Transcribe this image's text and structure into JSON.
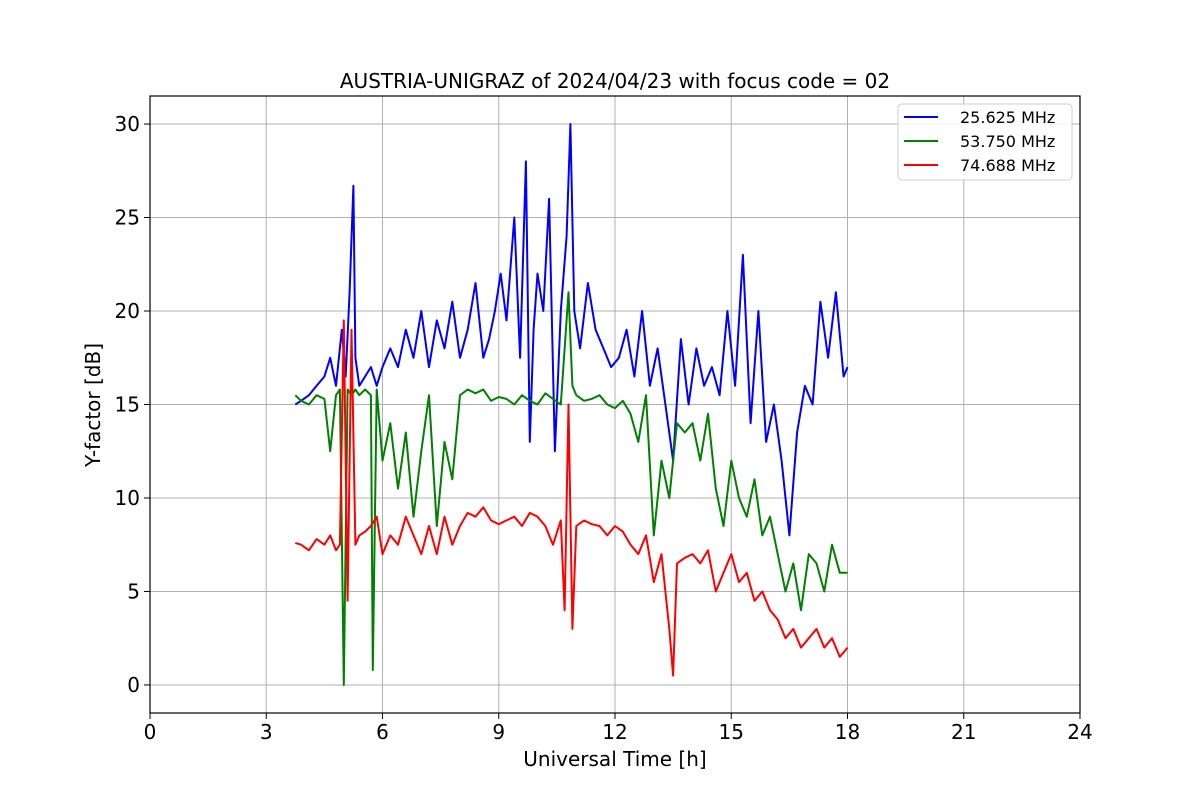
{
  "chart_data": {
    "type": "line",
    "title": "AUSTRIA-UNIGRAZ of 2024/04/23 with focus code = 02",
    "xlabel": "Universal Time [h]",
    "ylabel": "Y-factor [dB]",
    "xlim": [
      0,
      24
    ],
    "ylim": [
      -1.5,
      31.5
    ],
    "xticks": [
      0,
      3,
      6,
      9,
      12,
      15,
      18,
      21,
      24
    ],
    "yticks": [
      0,
      5,
      10,
      15,
      20,
      25,
      30
    ],
    "grid": true,
    "legend_position": "top-right",
    "series": [
      {
        "name": "25.625 MHz",
        "color": "#0000ff",
        "x": [
          3.75,
          3.9,
          4.1,
          4.3,
          4.5,
          4.65,
          4.8,
          4.95,
          5.05,
          5.15,
          5.25,
          5.3,
          5.4,
          5.55,
          5.7,
          5.85,
          6.0,
          6.2,
          6.4,
          6.6,
          6.8,
          7.0,
          7.2,
          7.4,
          7.6,
          7.8,
          8.0,
          8.2,
          8.4,
          8.6,
          8.75,
          8.9,
          9.05,
          9.2,
          9.4,
          9.55,
          9.7,
          9.8,
          9.9,
          10.0,
          10.15,
          10.3,
          10.45,
          10.6,
          10.75,
          10.85,
          10.95,
          11.1,
          11.3,
          11.5,
          11.7,
          11.9,
          12.1,
          12.3,
          12.5,
          12.7,
          12.9,
          13.1,
          13.3,
          13.5,
          13.7,
          13.9,
          14.1,
          14.3,
          14.5,
          14.7,
          14.9,
          15.1,
          15.3,
          15.5,
          15.7,
          15.9,
          16.1,
          16.3,
          16.5,
          16.7,
          16.9,
          17.1,
          17.3,
          17.5,
          17.7,
          17.9,
          18.0
        ],
        "y": [
          15.0,
          15.2,
          15.5,
          16.0,
          16.5,
          17.5,
          16.0,
          19.0,
          16.5,
          21.0,
          26.7,
          17.5,
          16.0,
          16.5,
          17.0,
          16.0,
          17.0,
          18.0,
          17.0,
          19.0,
          17.5,
          20.0,
          17.0,
          19.5,
          18.0,
          20.5,
          17.5,
          19.0,
          21.5,
          17.5,
          18.5,
          20.0,
          22.0,
          19.5,
          25.0,
          17.5,
          28.0,
          13.0,
          19.0,
          22.0,
          20.0,
          26.0,
          12.5,
          20.0,
          24.0,
          30.0,
          20.0,
          18.0,
          21.5,
          19.0,
          18.0,
          17.0,
          17.5,
          19.0,
          16.5,
          20.0,
          16.0,
          18.0,
          15.0,
          12.0,
          18.5,
          15.0,
          18.0,
          16.0,
          17.0,
          15.5,
          20.0,
          16.0,
          23.0,
          14.0,
          20.0,
          13.0,
          15.0,
          12.0,
          8.0,
          13.5,
          16.0,
          15.0,
          20.5,
          17.5,
          21.0,
          16.5,
          17.0
        ]
      },
      {
        "name": "53.750 MHz",
        "color": "#008000",
        "x": [
          3.75,
          3.9,
          4.1,
          4.3,
          4.5,
          4.65,
          4.8,
          4.9,
          5.0,
          5.1,
          5.2,
          5.3,
          5.4,
          5.55,
          5.7,
          5.75,
          5.85,
          6.0,
          6.2,
          6.4,
          6.6,
          6.8,
          7.0,
          7.2,
          7.4,
          7.6,
          7.8,
          8.0,
          8.2,
          8.4,
          8.6,
          8.8,
          9.0,
          9.2,
          9.4,
          9.6,
          9.8,
          10.0,
          10.2,
          10.4,
          10.6,
          10.8,
          10.9,
          11.0,
          11.2,
          11.4,
          11.6,
          11.8,
          12.0,
          12.2,
          12.4,
          12.6,
          12.8,
          13.0,
          13.2,
          13.4,
          13.6,
          13.8,
          14.0,
          14.2,
          14.4,
          14.6,
          14.8,
          15.0,
          15.2,
          15.4,
          15.6,
          15.8,
          16.0,
          16.2,
          16.4,
          16.6,
          16.8,
          17.0,
          17.2,
          17.4,
          17.6,
          17.8,
          18.0
        ],
        "y": [
          15.5,
          15.2,
          15.0,
          15.5,
          15.3,
          12.5,
          15.5,
          15.8,
          0.0,
          15.8,
          15.5,
          15.8,
          15.5,
          15.8,
          15.5,
          0.8,
          15.8,
          12.0,
          14.0,
          10.5,
          13.5,
          9.0,
          12.5,
          15.5,
          8.5,
          13.0,
          11.0,
          15.5,
          15.8,
          15.6,
          15.8,
          15.2,
          15.4,
          15.3,
          15.0,
          15.5,
          15.2,
          15.0,
          15.6,
          15.3,
          15.0,
          21.0,
          16.0,
          15.5,
          15.2,
          15.3,
          15.5,
          15.0,
          14.8,
          15.2,
          14.5,
          13.0,
          15.5,
          8.0,
          12.0,
          10.0,
          14.0,
          13.5,
          14.0,
          12.0,
          14.5,
          10.5,
          8.5,
          12.0,
          10.0,
          9.0,
          11.0,
          8.0,
          9.0,
          7.0,
          5.0,
          6.5,
          4.0,
          7.0,
          6.5,
          5.0,
          7.5,
          6.0,
          6.0
        ]
      },
      {
        "name": "74.688 MHz",
        "color": "#ff0000",
        "x": [
          3.75,
          3.9,
          4.1,
          4.3,
          4.5,
          4.65,
          4.8,
          4.9,
          5.0,
          5.1,
          5.2,
          5.3,
          5.4,
          5.55,
          5.7,
          5.85,
          6.0,
          6.2,
          6.4,
          6.6,
          6.8,
          7.0,
          7.2,
          7.4,
          7.6,
          7.8,
          8.0,
          8.2,
          8.4,
          8.6,
          8.8,
          9.0,
          9.2,
          9.4,
          9.6,
          9.8,
          10.0,
          10.2,
          10.4,
          10.6,
          10.7,
          10.8,
          10.9,
          11.0,
          11.2,
          11.4,
          11.6,
          11.8,
          12.0,
          12.2,
          12.4,
          12.6,
          12.8,
          13.0,
          13.2,
          13.4,
          13.5,
          13.6,
          13.8,
          14.0,
          14.2,
          14.4,
          14.6,
          14.8,
          15.0,
          15.2,
          15.4,
          15.6,
          15.8,
          16.0,
          16.2,
          16.4,
          16.6,
          16.8,
          17.0,
          17.2,
          17.4,
          17.6,
          17.8,
          18.0
        ],
        "y": [
          7.6,
          7.5,
          7.2,
          7.8,
          7.5,
          8.0,
          7.2,
          7.5,
          19.5,
          4.5,
          19.0,
          7.5,
          8.0,
          8.2,
          8.5,
          9.0,
          7.0,
          8.0,
          7.5,
          9.0,
          8.0,
          7.0,
          8.5,
          7.0,
          9.0,
          7.5,
          8.5,
          9.2,
          9.0,
          9.5,
          8.8,
          8.6,
          8.8,
          9.0,
          8.5,
          9.2,
          9.0,
          8.5,
          7.5,
          8.8,
          4.0,
          15.0,
          3.0,
          8.5,
          8.8,
          8.6,
          8.5,
          8.0,
          8.5,
          8.2,
          7.5,
          7.0,
          8.0,
          5.5,
          7.0,
          3.0,
          0.5,
          6.5,
          6.8,
          7.0,
          6.5,
          7.2,
          5.0,
          6.0,
          7.0,
          5.5,
          6.0,
          4.5,
          5.0,
          4.0,
          3.5,
          2.5,
          3.0,
          2.0,
          2.5,
          3.0,
          2.0,
          2.5,
          1.5,
          2.0
        ]
      }
    ]
  }
}
